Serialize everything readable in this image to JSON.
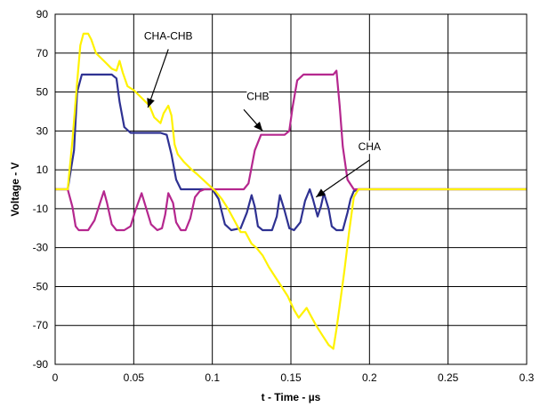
{
  "chart_data": {
    "type": "line",
    "xlabel": "t - Time - µs",
    "ylabel": "Voltage - V",
    "xlim": [
      0,
      0.3
    ],
    "ylim": [
      -90,
      90
    ],
    "x_ticks": [
      "0",
      "0.05",
      "0.1",
      "0.15",
      "0.2",
      "0.25",
      "0.3"
    ],
    "y_ticks": [
      "90",
      "70",
      "50",
      "30",
      "10",
      "-10",
      "-30",
      "-50",
      "-70",
      "-90"
    ],
    "grid": true,
    "series": [
      {
        "name": "CHA",
        "color": "#2E3192",
        "points": [
          [
            0.0,
            0
          ],
          [
            0.008,
            0
          ],
          [
            0.012,
            20
          ],
          [
            0.014,
            50
          ],
          [
            0.017,
            59
          ],
          [
            0.025,
            59
          ],
          [
            0.036,
            59
          ],
          [
            0.039,
            57
          ],
          [
            0.041,
            45
          ],
          [
            0.044,
            32
          ],
          [
            0.048,
            29
          ],
          [
            0.058,
            29
          ],
          [
            0.067,
            29
          ],
          [
            0.071,
            28
          ],
          [
            0.074,
            18
          ],
          [
            0.077,
            5
          ],
          [
            0.08,
            0
          ],
          [
            0.088,
            0
          ],
          [
            0.095,
            0
          ],
          [
            0.1,
            0
          ],
          [
            0.104,
            -5
          ],
          [
            0.108,
            -18
          ],
          [
            0.112,
            -21
          ],
          [
            0.118,
            -20
          ],
          [
            0.122,
            -12
          ],
          [
            0.125,
            -3
          ],
          [
            0.127,
            -9
          ],
          [
            0.129,
            -19
          ],
          [
            0.132,
            -21
          ],
          [
            0.138,
            -21
          ],
          [
            0.141,
            -14
          ],
          [
            0.143,
            -3
          ],
          [
            0.146,
            -11
          ],
          [
            0.149,
            -20
          ],
          [
            0.152,
            -21
          ],
          [
            0.156,
            -17
          ],
          [
            0.159,
            -6
          ],
          [
            0.162,
            0
          ],
          [
            0.164,
            -5
          ],
          [
            0.167,
            -14
          ],
          [
            0.169,
            -9
          ],
          [
            0.171,
            -2
          ],
          [
            0.174,
            -10
          ],
          [
            0.176,
            -19
          ],
          [
            0.179,
            -21
          ],
          [
            0.183,
            -21
          ],
          [
            0.186,
            -12
          ],
          [
            0.188,
            -5
          ],
          [
            0.19,
            -1
          ],
          [
            0.193,
            0
          ],
          [
            0.21,
            0
          ],
          [
            0.25,
            0
          ],
          [
            0.3,
            0
          ]
        ]
      },
      {
        "name": "CHB",
        "color": "#B5278E",
        "points": [
          [
            0.0,
            0
          ],
          [
            0.008,
            0
          ],
          [
            0.011,
            -9
          ],
          [
            0.013,
            -19
          ],
          [
            0.015,
            -21
          ],
          [
            0.021,
            -21
          ],
          [
            0.025,
            -16
          ],
          [
            0.029,
            -6
          ],
          [
            0.031,
            -1
          ],
          [
            0.033,
            -7
          ],
          [
            0.036,
            -18
          ],
          [
            0.039,
            -21
          ],
          [
            0.044,
            -21
          ],
          [
            0.048,
            -19
          ],
          [
            0.051,
            -11
          ],
          [
            0.055,
            -2
          ],
          [
            0.058,
            -10
          ],
          [
            0.061,
            -18
          ],
          [
            0.065,
            -21
          ],
          [
            0.068,
            -20
          ],
          [
            0.07,
            -13
          ],
          [
            0.072,
            -2
          ],
          [
            0.075,
            -7
          ],
          [
            0.077,
            -17
          ],
          [
            0.08,
            -21
          ],
          [
            0.083,
            -21
          ],
          [
            0.086,
            -15
          ],
          [
            0.089,
            -4
          ],
          [
            0.092,
            -1
          ],
          [
            0.095,
            0
          ],
          [
            0.1,
            0
          ],
          [
            0.11,
            0
          ],
          [
            0.12,
            0
          ],
          [
            0.123,
            3
          ],
          [
            0.127,
            20
          ],
          [
            0.131,
            28
          ],
          [
            0.14,
            28
          ],
          [
            0.146,
            28
          ],
          [
            0.149,
            30
          ],
          [
            0.151,
            42
          ],
          [
            0.154,
            56
          ],
          [
            0.158,
            59
          ],
          [
            0.17,
            59
          ],
          [
            0.177,
            59
          ],
          [
            0.179,
            61
          ],
          [
            0.181,
            43
          ],
          [
            0.183,
            22
          ],
          [
            0.186,
            5
          ],
          [
            0.19,
            0
          ],
          [
            0.2,
            0
          ],
          [
            0.25,
            0
          ],
          [
            0.3,
            0
          ]
        ]
      },
      {
        "name": "CHA-CHB",
        "color": "#FFF200",
        "points": [
          [
            0.0,
            0
          ],
          [
            0.008,
            0
          ],
          [
            0.011,
            25
          ],
          [
            0.014,
            55
          ],
          [
            0.016,
            74
          ],
          [
            0.018,
            80
          ],
          [
            0.021,
            80
          ],
          [
            0.023,
            77
          ],
          [
            0.026,
            70
          ],
          [
            0.031,
            66
          ],
          [
            0.036,
            62
          ],
          [
            0.039,
            61
          ],
          [
            0.041,
            66
          ],
          [
            0.043,
            60
          ],
          [
            0.046,
            53
          ],
          [
            0.05,
            51
          ],
          [
            0.055,
            47
          ],
          [
            0.06,
            43
          ],
          [
            0.063,
            37
          ],
          [
            0.067,
            34
          ],
          [
            0.069,
            39
          ],
          [
            0.072,
            43
          ],
          [
            0.074,
            38
          ],
          [
            0.076,
            23
          ],
          [
            0.078,
            18
          ],
          [
            0.082,
            14
          ],
          [
            0.087,
            10
          ],
          [
            0.09,
            8
          ],
          [
            0.094,
            5
          ],
          [
            0.098,
            2
          ],
          [
            0.102,
            -1
          ],
          [
            0.106,
            -5
          ],
          [
            0.11,
            -10
          ],
          [
            0.114,
            -16
          ],
          [
            0.118,
            -22
          ],
          [
            0.121,
            -22
          ],
          [
            0.125,
            -28
          ],
          [
            0.128,
            -30
          ],
          [
            0.132,
            -34
          ],
          [
            0.136,
            -40
          ],
          [
            0.14,
            -45
          ],
          [
            0.144,
            -50
          ],
          [
            0.148,
            -55
          ],
          [
            0.152,
            -62
          ],
          [
            0.155,
            -66
          ],
          [
            0.157,
            -64
          ],
          [
            0.16,
            -61
          ],
          [
            0.162,
            -64
          ],
          [
            0.166,
            -70
          ],
          [
            0.17,
            -75
          ],
          [
            0.174,
            -80
          ],
          [
            0.177,
            -82
          ],
          [
            0.179,
            -72
          ],
          [
            0.181,
            -60
          ],
          [
            0.184,
            -42
          ],
          [
            0.187,
            -22
          ],
          [
            0.19,
            -4
          ],
          [
            0.193,
            0
          ],
          [
            0.21,
            0
          ],
          [
            0.25,
            0
          ],
          [
            0.3,
            0
          ]
        ]
      }
    ],
    "annotations": [
      {
        "text": "CHA-CHB",
        "label_pos": [
          0.072,
          77
        ],
        "arrow_start": [
          0.072,
          72
        ],
        "arrow_end": [
          0.059,
          42
        ]
      },
      {
        "text": "CHB",
        "label_pos": [
          0.129,
          46
        ],
        "arrow_start": [
          0.12,
          41
        ],
        "arrow_end": [
          0.132,
          30
        ]
      },
      {
        "text": "CHA",
        "label_pos": [
          0.2,
          20
        ],
        "arrow_start": [
          0.2,
          15
        ],
        "arrow_end": [
          0.166,
          -4
        ]
      }
    ]
  }
}
